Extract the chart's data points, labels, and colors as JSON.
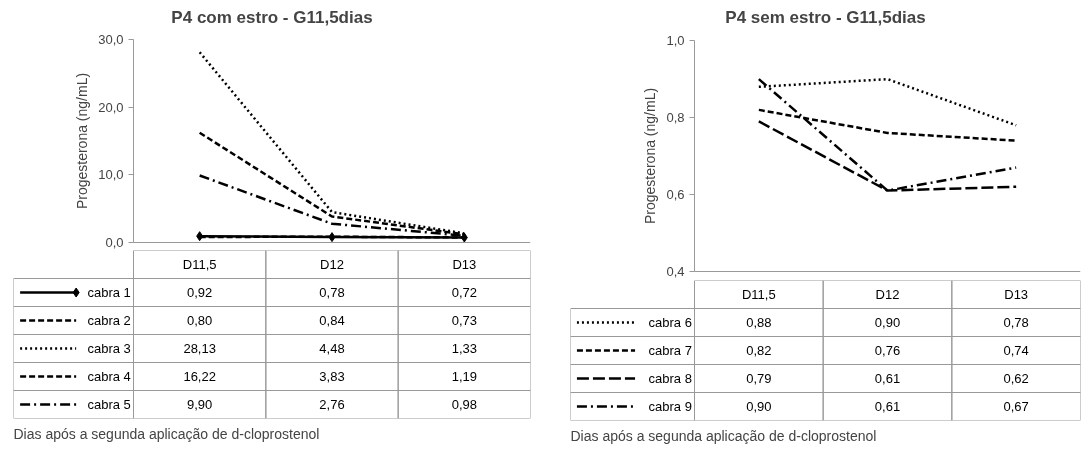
{
  "chart_data": [
    {
      "type": "line",
      "legend": "bottom",
      "title": "P4 com estro - G11,5dias",
      "xlabel": "Dias após a segunda aplicação de d-cloprostenol",
      "ylabel": "Progesterona (ng/mL)",
      "categories": [
        "D11,5",
        "D12",
        "D13"
      ],
      "ylim": [
        0,
        30
      ],
      "yticks": [
        {
          "value": 0,
          "label": "0,0"
        },
        {
          "value": 10,
          "label": "10,0"
        },
        {
          "value": 20,
          "label": "20,0"
        },
        {
          "value": 30,
          "label": "30,0"
        }
      ],
      "series": [
        {
          "name": "cabra 1",
          "color": "#000000",
          "line_style": "solid",
          "marker": "diamond",
          "values": [
            0.92,
            0.78,
            0.72
          ],
          "value_labels": [
            "0,92",
            "0,78",
            "0,72"
          ]
        },
        {
          "name": "cabra 2",
          "color": "#000000",
          "line_style": "dashed",
          "values": [
            0.8,
            0.84,
            0.73
          ],
          "value_labels": [
            "0,80",
            "0,84",
            "0,73"
          ]
        },
        {
          "name": "cabra 3",
          "color": "#000000",
          "line_style": "dotted",
          "values": [
            28.13,
            4.48,
            1.33
          ],
          "value_labels": [
            "28,13",
            "4,48",
            "1,33"
          ]
        },
        {
          "name": "cabra 4",
          "color": "#000000",
          "line_style": "dashed",
          "values": [
            16.22,
            3.83,
            1.19
          ],
          "value_labels": [
            "16,22",
            "3,83",
            "1,19"
          ]
        },
        {
          "name": "cabra 5",
          "color": "#000000",
          "line_style": "dashdot",
          "values": [
            9.9,
            2.76,
            0.98
          ],
          "value_labels": [
            "9,90",
            "2,76",
            "0,98"
          ]
        }
      ]
    },
    {
      "type": "line",
      "legend": "bottom",
      "title": "P4 sem estro - G11,5dias",
      "xlabel": "Dias após a segunda aplicação de d-cloprostenol",
      "ylabel": "Progesterona (ng/mL)",
      "categories": [
        "D11,5",
        "D12",
        "D13"
      ],
      "ylim": [
        0.4,
        1.0
      ],
      "yticks": [
        {
          "value": 0.4,
          "label": "0,4"
        },
        {
          "value": 0.6,
          "label": "0,6"
        },
        {
          "value": 0.8,
          "label": "0,8"
        },
        {
          "value": 1.0,
          "label": "1,0"
        }
      ],
      "series": [
        {
          "name": "cabra 6",
          "color": "#000000",
          "line_style": "dotted",
          "values": [
            0.88,
            0.9,
            0.78
          ],
          "value_labels": [
            "0,88",
            "0,90",
            "0,78"
          ]
        },
        {
          "name": "cabra 7",
          "color": "#000000",
          "line_style": "dashed",
          "values": [
            0.82,
            0.76,
            0.74
          ],
          "value_labels": [
            "0,82",
            "0,76",
            "0,74"
          ]
        },
        {
          "name": "cabra 8",
          "color": "#000000",
          "line_style": "longdash",
          "values": [
            0.79,
            0.61,
            0.62
          ],
          "value_labels": [
            "0,79",
            "0,61",
            "0,62"
          ]
        },
        {
          "name": "cabra 9",
          "color": "#000000",
          "line_style": "dashdot",
          "values": [
            0.9,
            0.61,
            0.67
          ],
          "value_labels": [
            "0,90",
            "0,61",
            "0,67"
          ]
        }
      ]
    }
  ]
}
